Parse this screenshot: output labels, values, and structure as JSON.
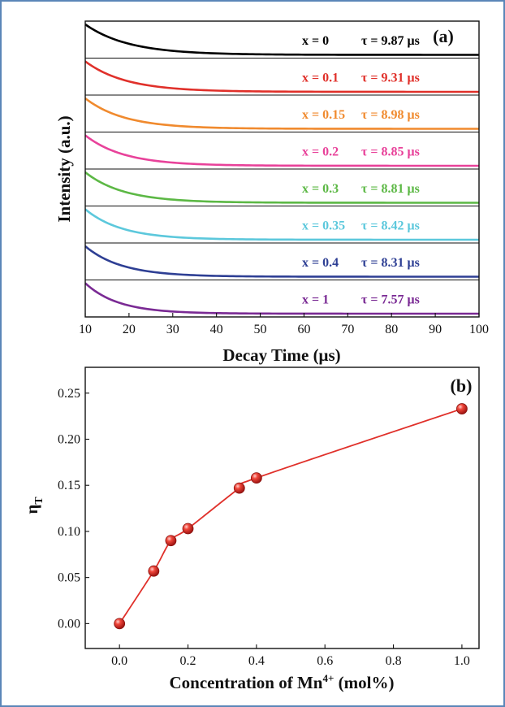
{
  "chart_data": [
    {
      "type": "line",
      "panel_label": "(a)",
      "xlabel": "Decay Time (μs)",
      "ylabel": "Intensity (a.u.)",
      "xlim": [
        10,
        100
      ],
      "xticks": [
        "10",
        "20",
        "30",
        "40",
        "50",
        "60",
        "70",
        "80",
        "90",
        "100"
      ],
      "grid": false,
      "series": [
        {
          "x_label": "x = 0",
          "tau_label": "τ = 9.87 μs",
          "tau": 9.87,
          "color": "#000000"
        },
        {
          "x_label": "x = 0.1",
          "tau_label": "τ = 9.31 μs",
          "tau": 9.31,
          "color": "#e0302a"
        },
        {
          "x_label": "x = 0.15",
          "tau_label": "τ = 8.98 μs",
          "tau": 8.98,
          "color": "#f08a2e"
        },
        {
          "x_label": "x = 0.2",
          "tau_label": "τ = 8.85 μs",
          "tau": 8.85,
          "color": "#e8429a"
        },
        {
          "x_label": "x = 0.3",
          "tau_label": "τ = 8.81 μs",
          "tau": 8.81,
          "color": "#5cb845"
        },
        {
          "x_label": "x = 0.35",
          "tau_label": "τ = 8.42 μs",
          "tau": 8.42,
          "color": "#5cc8dc"
        },
        {
          "x_label": "x = 0.4",
          "tau_label": "τ = 8.31 μs",
          "tau": 8.31,
          "color": "#2e3f94"
        },
        {
          "x_label": "x = 1",
          "tau_label": "τ = 7.57 μs",
          "tau": 7.57,
          "color": "#7a2a94"
        }
      ]
    },
    {
      "type": "scatter",
      "panel_label": "(b)",
      "xlabel": "Concentration of Mn",
      "xlabel_sup": "4+",
      "xlabel_suffix": " (mol%)",
      "ylabel": "η",
      "ylabel_sub": "T",
      "xlim": [
        -0.1,
        1.05
      ],
      "ylim": [
        -0.027,
        0.278
      ],
      "xticks": [
        0.0,
        0.2,
        0.4,
        0.6,
        0.8,
        1.0
      ],
      "xtick_labels": [
        "0.0",
        "0.2",
        "0.4",
        "0.6",
        "0.8",
        "1.0"
      ],
      "yticks": [
        0.0,
        0.05,
        0.1,
        0.15,
        0.2,
        0.25
      ],
      "ytick_labels": [
        "0.00",
        "0.05",
        "0.10",
        "0.15",
        "0.20",
        "0.25"
      ],
      "color": "#e0302a",
      "grid": false,
      "points": [
        {
          "x": 0.0,
          "y": 0.0
        },
        {
          "x": 0.1,
          "y": 0.057
        },
        {
          "x": 0.15,
          "y": 0.09
        },
        {
          "x": 0.2,
          "y": 0.103
        },
        {
          "x": 0.35,
          "y": 0.147
        },
        {
          "x": 0.4,
          "y": 0.158
        },
        {
          "x": 1.0,
          "y": 0.233
        }
      ],
      "fit_line": true
    }
  ]
}
